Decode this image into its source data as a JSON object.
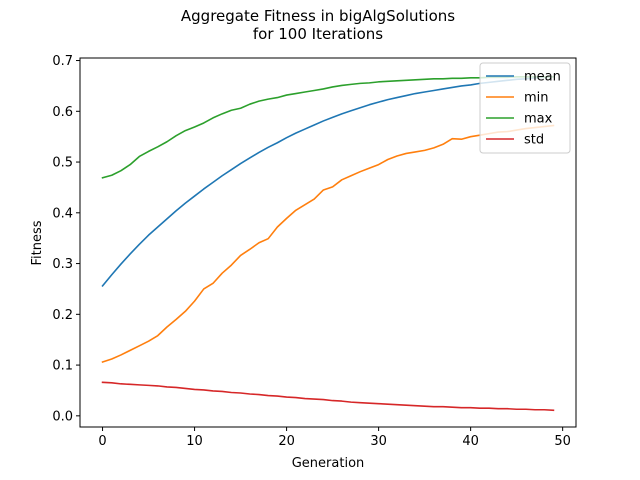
{
  "chart_data": {
    "type": "line",
    "title": [
      "Aggregate Fitness in bigAlgSolutions",
      "for 100 Iterations"
    ],
    "xlabel": "Generation",
    "ylabel": "Fitness",
    "xlim": [
      -2.45,
      51.45
    ],
    "ylim": [
      -0.022,
      0.705
    ],
    "xticks": [
      0,
      10,
      20,
      30,
      40,
      50
    ],
    "yticks": [
      0.0,
      0.1,
      0.2,
      0.3,
      0.4,
      0.5,
      0.6,
      0.7
    ],
    "xtick_labels": [
      "0",
      "10",
      "20",
      "30",
      "40",
      "50"
    ],
    "ytick_labels": [
      "0.0",
      "0.1",
      "0.2",
      "0.3",
      "0.4",
      "0.5",
      "0.6",
      "0.7"
    ],
    "grid": false,
    "legend_position": "top-right",
    "x": [
      0,
      1,
      2,
      3,
      4,
      5,
      6,
      7,
      8,
      9,
      10,
      11,
      12,
      13,
      14,
      15,
      16,
      17,
      18,
      19,
      20,
      21,
      22,
      23,
      24,
      25,
      26,
      27,
      28,
      29,
      30,
      31,
      32,
      33,
      34,
      35,
      36,
      37,
      38,
      39,
      40,
      41,
      42,
      43,
      44,
      45,
      46,
      47,
      48,
      49
    ],
    "series": [
      {
        "name": "mean",
        "color": "#1f77b4",
        "values": [
          0.256,
          0.278,
          0.299,
          0.319,
          0.338,
          0.356,
          0.372,
          0.388,
          0.404,
          0.419,
          0.433,
          0.447,
          0.46,
          0.473,
          0.485,
          0.497,
          0.508,
          0.519,
          0.529,
          0.538,
          0.548,
          0.557,
          0.565,
          0.573,
          0.581,
          0.588,
          0.595,
          0.601,
          0.607,
          0.613,
          0.618,
          0.623,
          0.627,
          0.631,
          0.635,
          0.638,
          0.641,
          0.644,
          0.647,
          0.65,
          0.652,
          0.655,
          0.657,
          0.659,
          0.661,
          0.663,
          0.664,
          0.666,
          0.667,
          0.668
        ]
      },
      {
        "name": "min",
        "color": "#ff7f0e",
        "values": [
          0.106,
          0.112,
          0.12,
          0.129,
          0.138,
          0.147,
          0.158,
          0.175,
          0.19,
          0.206,
          0.226,
          0.25,
          0.261,
          0.281,
          0.297,
          0.316,
          0.328,
          0.341,
          0.349,
          0.372,
          0.389,
          0.405,
          0.416,
          0.427,
          0.445,
          0.451,
          0.465,
          0.473,
          0.481,
          0.488,
          0.495,
          0.505,
          0.512,
          0.517,
          0.52,
          0.523,
          0.528,
          0.535,
          0.546,
          0.545,
          0.55,
          0.553,
          0.556,
          0.559,
          0.56,
          0.563,
          0.566,
          0.568,
          0.57,
          0.572
        ]
      },
      {
        "name": "max",
        "color": "#2ca02c",
        "values": [
          0.469,
          0.474,
          0.483,
          0.495,
          0.511,
          0.521,
          0.53,
          0.54,
          0.552,
          0.562,
          0.569,
          0.577,
          0.587,
          0.595,
          0.602,
          0.606,
          0.614,
          0.62,
          0.624,
          0.627,
          0.632,
          0.635,
          0.638,
          0.641,
          0.644,
          0.648,
          0.651,
          0.653,
          0.655,
          0.656,
          0.658,
          0.659,
          0.66,
          0.661,
          0.662,
          0.663,
          0.664,
          0.664,
          0.665,
          0.665,
          0.666,
          0.666,
          0.667,
          0.667,
          0.667,
          0.668,
          0.668,
          0.668,
          0.668,
          0.668
        ]
      },
      {
        "name": "std",
        "color": "#d62728",
        "values": [
          0.066,
          0.065,
          0.063,
          0.062,
          0.061,
          0.06,
          0.059,
          0.057,
          0.056,
          0.054,
          0.052,
          0.051,
          0.049,
          0.048,
          0.046,
          0.045,
          0.043,
          0.042,
          0.04,
          0.039,
          0.037,
          0.036,
          0.034,
          0.033,
          0.032,
          0.03,
          0.029,
          0.027,
          0.026,
          0.025,
          0.024,
          0.023,
          0.022,
          0.021,
          0.02,
          0.019,
          0.018,
          0.018,
          0.017,
          0.016,
          0.016,
          0.015,
          0.015,
          0.014,
          0.014,
          0.013,
          0.013,
          0.012,
          0.012,
          0.011
        ]
      }
    ]
  }
}
